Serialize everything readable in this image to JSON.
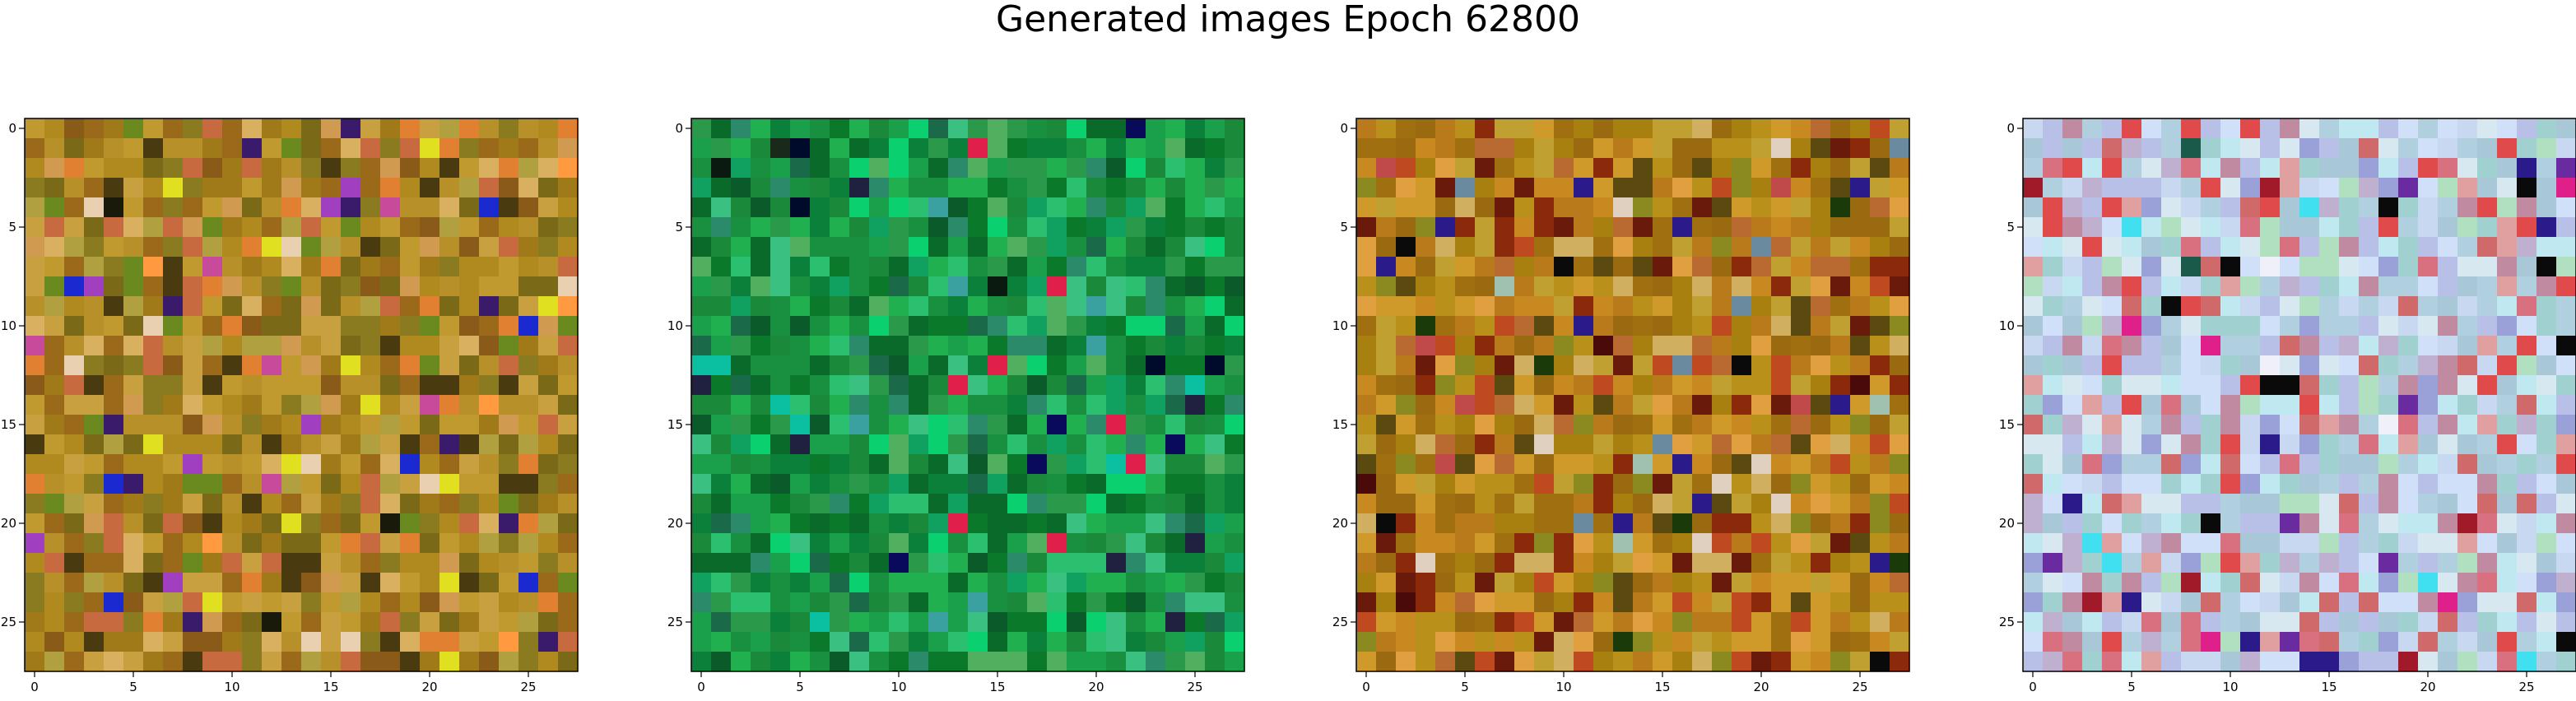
{
  "figure": {
    "title": "Generated images Epoch 62800"
  },
  "chart_data": [
    {
      "type": "heatmap",
      "title": "",
      "xlabel": "",
      "ylabel": "",
      "grid": false,
      "size": [
        28,
        28
      ],
      "xticks": [
        0,
        5,
        10,
        15,
        20,
        25
      ],
      "yticks": [
        0,
        5,
        10,
        15,
        20,
        25
      ],
      "palette": {
        "base": [
          "#b08a1e",
          "#a07a18",
          "#c09a2e",
          "#8a7a20",
          "#b8902a",
          "#9a6a1a",
          "#c8a040",
          "#7a6a18"
        ],
        "accent": [
          "#d8b060",
          "#e08030",
          "#6a8a20",
          "#c86a40",
          "#4a3a10",
          "#d09a50",
          "#8a5a18",
          "#b0a040"
        ],
        "rare": [
          "#3a1a6a",
          "#1a2ad0",
          "#c84a9a",
          "#1a1a0a",
          "#e0e020",
          "#a040c0",
          "#ff9a40",
          "#e8d0b0"
        ]
      },
      "seed": 11
    },
    {
      "type": "heatmap",
      "title": "",
      "xlabel": "",
      "ylabel": "",
      "grid": false,
      "size": [
        28,
        28
      ],
      "xticks": [
        0,
        5,
        10,
        15,
        20,
        25
      ],
      "yticks": [
        0,
        5,
        10,
        15,
        20,
        25
      ],
      "palette": {
        "base": [
          "#1a8a3a",
          "#0a7a2a",
          "#2a9a4a",
          "#1aa04a",
          "#0a6a2a",
          "#20b050",
          "#189040",
          "#0a803a"
        ],
        "accent": [
          "#2ac070",
          "#0a5a2a",
          "#3ac080",
          "#1a6a4a",
          "#50b060",
          "#10a060",
          "#2a8a6a",
          "#0ad070"
        ],
        "rare": [
          "#000a2a",
          "#0a0a5a",
          "#e0204a",
          "#1a2a1a",
          "#0a1a10",
          "#3aa0a0",
          "#0ac0a0",
          "#202040"
        ]
      },
      "seed": 23
    },
    {
      "type": "heatmap",
      "title": "",
      "xlabel": "",
      "ylabel": "",
      "grid": false,
      "size": [
        28,
        28
      ],
      "xticks": [
        0,
        5,
        10,
        15,
        20,
        25
      ],
      "yticks": [
        0,
        5,
        10,
        15,
        20,
        25
      ],
      "palette": {
        "base": [
          "#b8901a",
          "#c88a20",
          "#a07010",
          "#d09a2a",
          "#9a6a10",
          "#b87a1a",
          "#c0a030",
          "#a88010"
        ],
        "accent": [
          "#8a2a0a",
          "#6a1a0a",
          "#c04a20",
          "#e0a040",
          "#8a8a20",
          "#5a4a10",
          "#d0b060",
          "#b86a30"
        ],
        "rare": [
          "#0a0a0a",
          "#1a3a0a",
          "#2a1a8a",
          "#a0c0b0",
          "#e0d0c0",
          "#4a0a0a",
          "#6a8aa0",
          "#c04a4a"
        ]
      },
      "seed": 37
    },
    {
      "type": "heatmap",
      "title": "",
      "xlabel": "",
      "ylabel": "",
      "grid": false,
      "size": [
        28,
        28
      ],
      "xticks": [
        0,
        5,
        10,
        15,
        20,
        25
      ],
      "yticks": [
        0,
        5,
        10,
        15,
        20,
        25
      ],
      "palette": {
        "base": [
          "#c8d8f0",
          "#b0d0e0",
          "#d0e0f8",
          "#a8c8d8",
          "#c0e8f0",
          "#b8c0e8",
          "#d8e8f0",
          "#a0d0d0"
        ],
        "accent": [
          "#e04a4a",
          "#d06a6a",
          "#c08aa0",
          "#e0a0a0",
          "#9aa0d8",
          "#b0e0c0",
          "#d87080",
          "#c0b0d0"
        ],
        "rare": [
          "#0a0a0a",
          "#2a1a8a",
          "#40e0f0",
          "#e0208a",
          "#1a5a4a",
          "#6a2aa0",
          "#f0f0f8",
          "#a01a2a"
        ]
      },
      "seed": 53
    }
  ]
}
